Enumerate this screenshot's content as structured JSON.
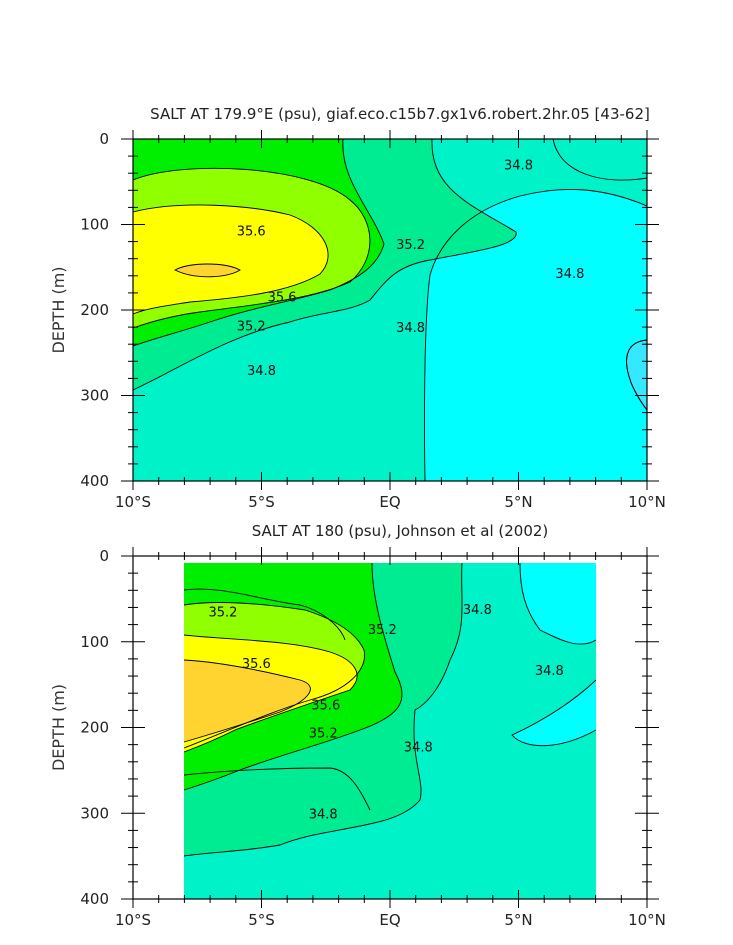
{
  "chart_data": [
    {
      "type": "contour",
      "title": "SALT AT 179.9°E (psu), giaf.eco.c15b7.gx1v6.robert.2hr.05 [43-62]",
      "ylabel": "DEPTH (m)",
      "x_ticks": [
        "10°S",
        "5°S",
        "EQ",
        "5°N",
        "10°N"
      ],
      "x_range": [
        -10,
        10
      ],
      "y_ticks": [
        "0",
        "100",
        "200",
        "300",
        "400"
      ],
      "y_range": [
        0,
        400
      ],
      "y_inverted": true,
      "contour_labels": [
        {
          "text": "35.6",
          "x": -5.4,
          "y": 107
        },
        {
          "text": "35.6",
          "x": -4.2,
          "y": 184
        },
        {
          "text": "35.2",
          "x": 0.8,
          "y": 123
        },
        {
          "text": "35.2",
          "x": -5.4,
          "y": 218
        },
        {
          "text": "34.8",
          "x": 5.0,
          "y": 30
        },
        {
          "text": "34.8",
          "x": 7.0,
          "y": 157
        },
        {
          "text": "34.8",
          "x": 0.8,
          "y": 220
        },
        {
          "text": "34.8",
          "x": -5.0,
          "y": 270
        }
      ],
      "colors": {
        "cyan_deep": "#33e8ff",
        "cyan": "#00ffff",
        "aqua": "#00f2c8",
        "teal_green": "#00ec92",
        "green": "#00ee00",
        "lime": "#90ff00",
        "yellow": "#ffff00",
        "gold": "#ffd430"
      }
    },
    {
      "type": "contour",
      "title": "SALT AT 180 (psu), Johnson et al (2002)",
      "ylabel": "DEPTH (m)",
      "x_ticks": [
        "10°S",
        "5°S",
        "EQ",
        "5°N",
        "10°N"
      ],
      "x_range": [
        -10,
        10
      ],
      "y_ticks": [
        "0",
        "100",
        "200",
        "300",
        "400"
      ],
      "y_range": [
        0,
        400
      ],
      "y_inverted": true,
      "data_x_range": [
        -8,
        8
      ],
      "contour_labels": [
        {
          "text": "35.2",
          "x": -6.5,
          "y": 65
        },
        {
          "text": "35.2",
          "x": -0.3,
          "y": 85
        },
        {
          "text": "34.8",
          "x": 3.4,
          "y": 62
        },
        {
          "text": "35.6",
          "x": -5.2,
          "y": 125
        },
        {
          "text": "34.8",
          "x": 6.2,
          "y": 133
        },
        {
          "text": "35.6",
          "x": -2.5,
          "y": 173
        },
        {
          "text": "35.2",
          "x": -2.6,
          "y": 206
        },
        {
          "text": "34.8",
          "x": 1.1,
          "y": 222
        },
        {
          "text": "34.8",
          "x": -2.6,
          "y": 300
        }
      ]
    }
  ]
}
